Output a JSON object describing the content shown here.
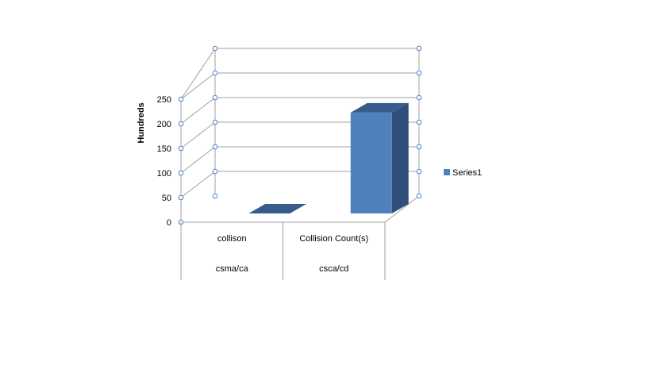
{
  "chart_data": {
    "type": "bar",
    "title": "",
    "xlabel": "",
    "ylabel": "Hundreds",
    "ylim": [
      0,
      250
    ],
    "yticks": [
      0,
      50,
      100,
      150,
      200,
      250
    ],
    "grid": true,
    "legend_position": "right",
    "categories": [
      {
        "top": "collison",
        "bottom": "csma/ca"
      },
      {
        "top": "Collision Count(s)",
        "bottom": "csca/cd"
      }
    ],
    "series": [
      {
        "name": "Series1",
        "color": "#4f81bd",
        "values": [
          0,
          205
        ]
      }
    ]
  }
}
